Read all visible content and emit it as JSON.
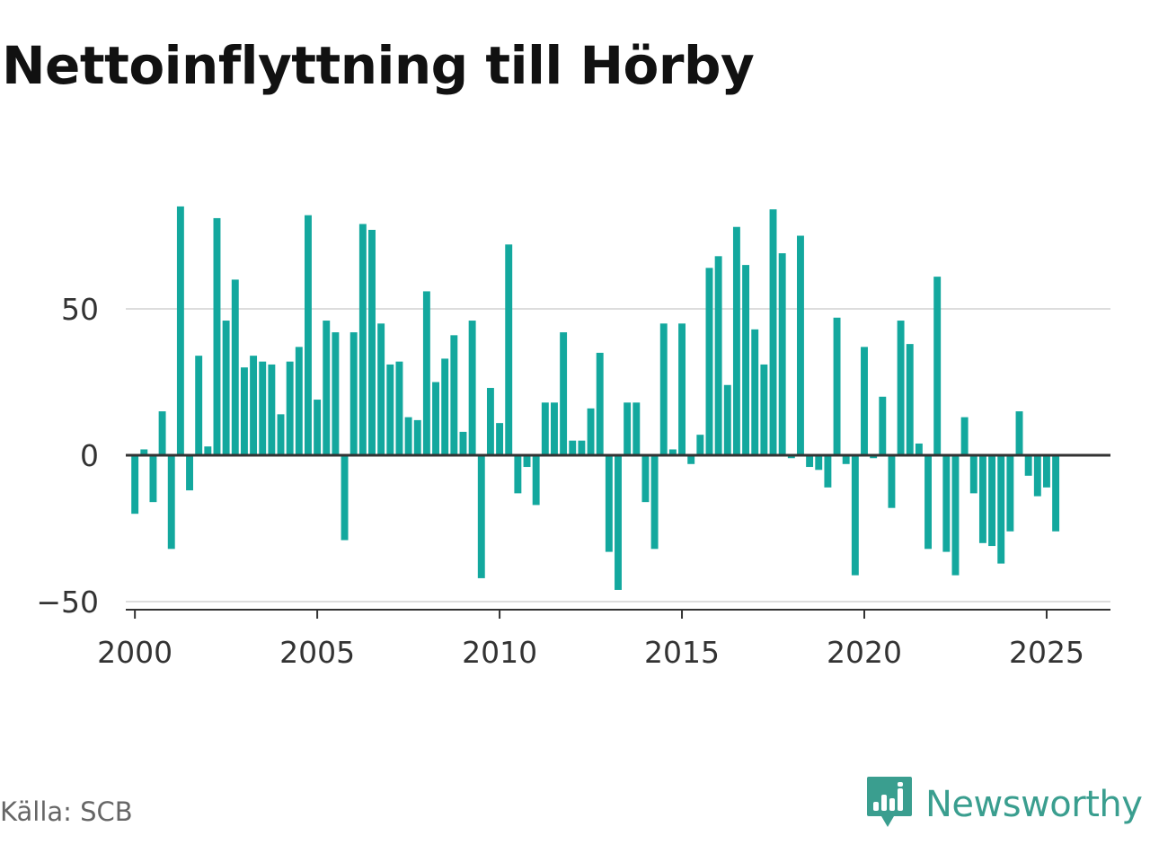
{
  "title": "Nettoinflyttning till Hörby",
  "source": "Källa: SCB",
  "brand": {
    "name": "Newsworthy",
    "logo_icon": "newsworthy-bar-chart-logo-icon",
    "color": "#3a9e8f"
  },
  "chart_data": {
    "type": "bar",
    "bar_color": "#13a89e",
    "xlim": [
      1999.75,
      2026.75
    ],
    "ylim": [
      -52,
      88
    ],
    "yticks": [
      -50,
      0,
      50
    ],
    "ytick_labels": [
      "−50",
      "0",
      "50"
    ],
    "xticks": [
      2000,
      2005,
      2010,
      2015,
      2020,
      2025
    ],
    "xtick_labels": [
      "2000",
      "2005",
      "2010",
      "2015",
      "2020",
      "2025"
    ],
    "grid": "horizontal",
    "legend": "none",
    "x": [
      "2000 Q1",
      "2000 Q2",
      "2000 Q3",
      "2000 Q4",
      "2001 Q1",
      "2001 Q2",
      "2001 Q3",
      "2001 Q4",
      "2002 Q1",
      "2002 Q2",
      "2002 Q3",
      "2002 Q4",
      "2003 Q1",
      "2003 Q2",
      "2003 Q3",
      "2003 Q4",
      "2004 Q1",
      "2004 Q2",
      "2004 Q3",
      "2004 Q4",
      "2005 Q1",
      "2005 Q2",
      "2005 Q3",
      "2005 Q4",
      "2006 Q1",
      "2006 Q2",
      "2006 Q3",
      "2006 Q4",
      "2007 Q1",
      "2007 Q2",
      "2007 Q3",
      "2007 Q4",
      "2008 Q1",
      "2008 Q2",
      "2008 Q3",
      "2008 Q4",
      "2009 Q1",
      "2009 Q2",
      "2009 Q3",
      "2009 Q4",
      "2010 Q1",
      "2010 Q2",
      "2010 Q3",
      "2010 Q4",
      "2011 Q1",
      "2011 Q2",
      "2011 Q3",
      "2011 Q4",
      "2012 Q1",
      "2012 Q2",
      "2012 Q3",
      "2012 Q4",
      "2013 Q1",
      "2013 Q2",
      "2013 Q3",
      "2013 Q4",
      "2014 Q1",
      "2014 Q2",
      "2014 Q3",
      "2014 Q4",
      "2015 Q1",
      "2015 Q2",
      "2015 Q3",
      "2015 Q4",
      "2016 Q1",
      "2016 Q2",
      "2016 Q3",
      "2016 Q4",
      "2017 Q1",
      "2017 Q2",
      "2017 Q3",
      "2017 Q4",
      "2018 Q1",
      "2018 Q2",
      "2018 Q3",
      "2018 Q4",
      "2019 Q1",
      "2019 Q2",
      "2019 Q3",
      "2019 Q4",
      "2020 Q1",
      "2020 Q2",
      "2020 Q3",
      "2020 Q4",
      "2021 Q1",
      "2021 Q2",
      "2021 Q3",
      "2021 Q4",
      "2022 Q1",
      "2022 Q2",
      "2022 Q3",
      "2022 Q4",
      "2023 Q1",
      "2023 Q2",
      "2023 Q3",
      "2023 Q4",
      "2024 Q1",
      "2024 Q2",
      "2024 Q3",
      "2024 Q4",
      "2025 Q1",
      "2025 Q2"
    ],
    "values": [
      -20,
      2,
      -16,
      15,
      -32,
      85,
      -12,
      34,
      3,
      81,
      46,
      60,
      30,
      34,
      32,
      31,
      14,
      32,
      37,
      82,
      19,
      46,
      42,
      -29,
      42,
      79,
      77,
      45,
      31,
      32,
      13,
      12,
      56,
      25,
      33,
      41,
      8,
      46,
      -42,
      23,
      11,
      72,
      -13,
      -4,
      -17,
      18,
      18,
      42,
      5,
      5,
      16,
      35,
      -33,
      -46,
      18,
      18,
      -16,
      -32,
      45,
      2,
      45,
      -3,
      7,
      64,
      68,
      24,
      78,
      65,
      43,
      31,
      84,
      69,
      -1,
      75,
      -4,
      -5,
      -11,
      47,
      -3,
      -41,
      37,
      -1,
      20,
      -18,
      46,
      38,
      4,
      -32,
      61,
      -33,
      -41,
      13,
      -13,
      -30,
      -31,
      -37,
      -26,
      15,
      -7,
      -14,
      -11,
      -26
    ]
  }
}
